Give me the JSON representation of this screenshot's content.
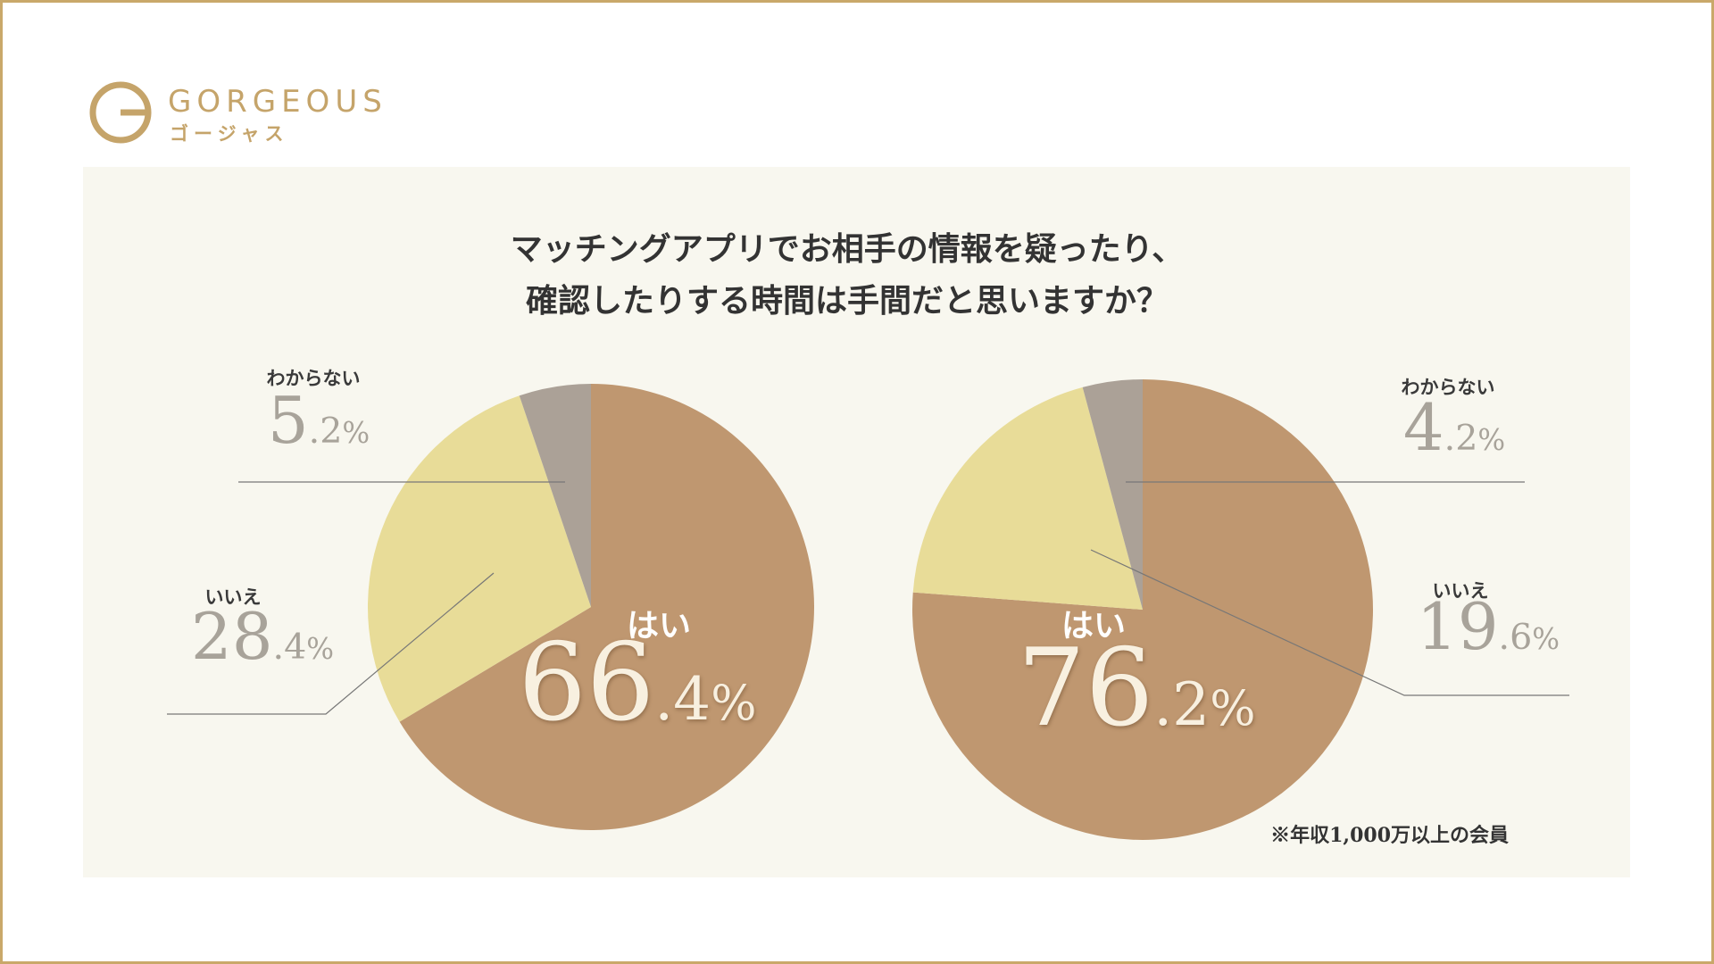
{
  "logo": {
    "name": "GORGEOUS",
    "kana": "ゴージャス"
  },
  "header": {
    "title_lines": [
      "マッチングアプリでお相手の情報を疑ったり、",
      "確認したりする時間は手間だと思いますか？"
    ]
  },
  "note": "※年収1,000万以上の会員",
  "chart_data": [
    {
      "type": "pie",
      "categories": [
        "はい",
        "いいえ",
        "わからない"
      ],
      "values": [
        66.4,
        28.4,
        5.2
      ],
      "value_labels": [
        "66.4%",
        "28.4%",
        "5.2%"
      ],
      "colors": [
        "#bf9770",
        "#e8dc98",
        "#aba197"
      ]
    },
    {
      "type": "pie",
      "categories": [
        "はい",
        "いいえ",
        "わからない"
      ],
      "values": [
        76.2,
        19.6,
        4.2
      ],
      "value_labels": [
        "76.2%",
        "19.6%",
        "4.2%"
      ],
      "colors": [
        "#bf9770",
        "#e8dc98",
        "#aba197"
      ]
    }
  ]
}
